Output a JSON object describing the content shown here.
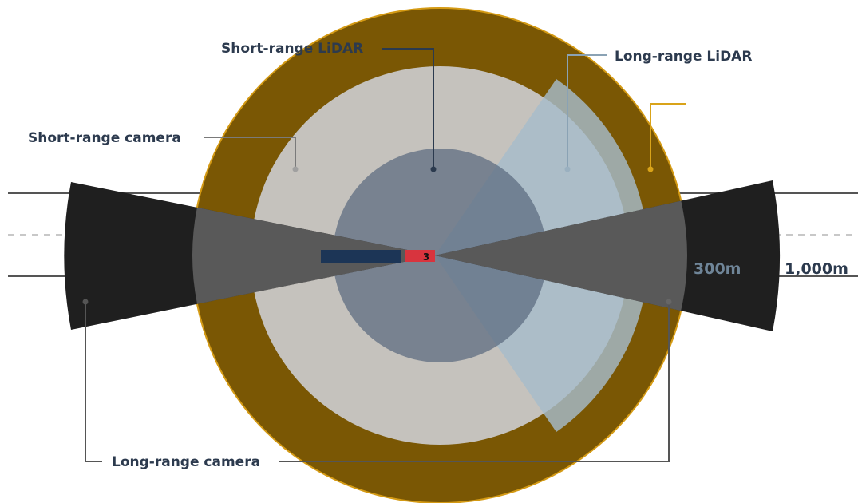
{
  "labels": {
    "short_range_lidar": "Short-range LiDAR",
    "long_range_lidar": "Long-range LiDAR",
    "short_range_camera": "Short-range camera",
    "long_range_camera": "Long-range camera"
  },
  "distances": {
    "inner": "300m",
    "outer": "1,000m"
  },
  "truck": {
    "cab_label": "3"
  },
  "colors": {
    "outer_ring": "#7a5704",
    "ring_outline": "#d49a14",
    "short_camera_zone": "#c5c2bd",
    "short_lidar_zone": "#5a6a7e",
    "long_lidar_wedge": "#a6bccb",
    "long_camera_wedge": "#1f1f1f",
    "leader_dark": "#2b3a4e",
    "leader_gold": "#d9a319",
    "truck_trailer": "#1c3556",
    "truck_cab": "#d8343e",
    "label_text": "#2c3a4e"
  }
}
